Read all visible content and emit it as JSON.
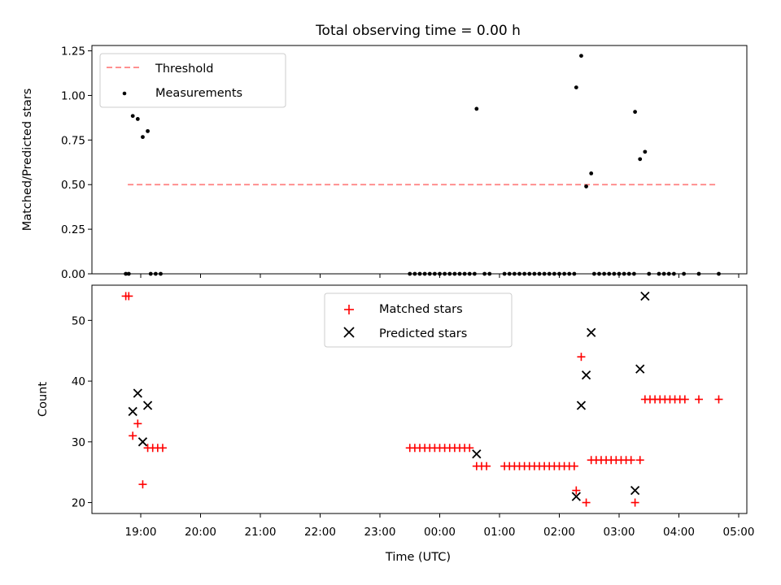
{
  "chart_data": {
    "title": "Total observing time = 0.00 h",
    "xlabel": "Time (UTC)",
    "x_tick_labels": [
      "19:00",
      "20:00",
      "21:00",
      "22:00",
      "23:00",
      "00:00",
      "01:00",
      "02:00",
      "03:00",
      "04:00",
      "05:00"
    ],
    "panels": [
      {
        "type": "scatter",
        "ylabel": "Matched/Predicted stars",
        "ylim": [
          0,
          1.28
        ],
        "yticks": [
          "0.00",
          "0.25",
          "0.50",
          "0.75",
          "1.00",
          "1.25"
        ],
        "grid": false,
        "legend": {
          "placement": "top-left",
          "entries": [
            {
              "label": "Threshold",
              "style": "dashed-line",
              "color": "#ff8080"
            },
            {
              "label": "Measurements",
              "style": "dot",
              "color": "#000000"
            }
          ]
        },
        "series": [
          {
            "name": "Threshold",
            "kind": "line",
            "color": "#ff8080",
            "points": [
              [
                "18:47",
                0.5
              ],
              [
                "04:37",
                0.5
              ]
            ]
          },
          {
            "name": "Measurements",
            "kind": "dot",
            "color": "#000000",
            "points": [
              [
                "18:45",
                0
              ],
              [
                "18:48",
                0
              ],
              [
                "18:52",
                0.885
              ],
              [
                "18:57",
                0.868
              ],
              [
                "19:02",
                0.767
              ],
              [
                "19:07",
                0.8
              ],
              [
                "19:10",
                0
              ],
              [
                "19:15",
                0
              ],
              [
                "19:20",
                0
              ],
              [
                "23:30",
                0
              ],
              [
                "23:35",
                0
              ],
              [
                "23:40",
                0
              ],
              [
                "23:45",
                0
              ],
              [
                "23:50",
                0
              ],
              [
                "23:55",
                0
              ],
              [
                "00:00",
                0
              ],
              [
                "00:05",
                0
              ],
              [
                "00:10",
                0
              ],
              [
                "00:15",
                0
              ],
              [
                "00:20",
                0
              ],
              [
                "00:25",
                0
              ],
              [
                "00:30",
                0
              ],
              [
                "00:35",
                0
              ],
              [
                "00:37",
                0.925
              ],
              [
                "00:45",
                0
              ],
              [
                "00:50",
                0
              ],
              [
                "01:05",
                0
              ],
              [
                "01:10",
                0
              ],
              [
                "01:15",
                0
              ],
              [
                "01:20",
                0
              ],
              [
                "01:25",
                0
              ],
              [
                "01:30",
                0
              ],
              [
                "01:35",
                0
              ],
              [
                "01:40",
                0
              ],
              [
                "01:45",
                0
              ],
              [
                "01:50",
                0
              ],
              [
                "01:55",
                0
              ],
              [
                "02:00",
                0
              ],
              [
                "02:05",
                0
              ],
              [
                "02:10",
                0
              ],
              [
                "02:15",
                0
              ],
              [
                "02:17",
                1.045
              ],
              [
                "02:22",
                1.222
              ],
              [
                "02:27",
                0.49
              ],
              [
                "02:32",
                0.563
              ],
              [
                "02:35",
                0
              ],
              [
                "02:40",
                0
              ],
              [
                "02:45",
                0
              ],
              [
                "02:50",
                0
              ],
              [
                "02:55",
                0
              ],
              [
                "03:00",
                0
              ],
              [
                "03:05",
                0
              ],
              [
                "03:10",
                0
              ],
              [
                "03:15",
                0
              ],
              [
                "03:16",
                0.908
              ],
              [
                "03:21",
                0.643
              ],
              [
                "03:26",
                0.684
              ],
              [
                "03:30",
                0
              ],
              [
                "03:40",
                0
              ],
              [
                "03:45",
                0
              ],
              [
                "03:50",
                0
              ],
              [
                "03:55",
                0
              ],
              [
                "04:05",
                0
              ],
              [
                "04:20",
                0
              ],
              [
                "04:40",
                0
              ]
            ]
          }
        ]
      },
      {
        "type": "scatter",
        "ylabel": "Count",
        "ylim": [
          18.2,
          55.8
        ],
        "yticks": [
          "20",
          "30",
          "40",
          "50"
        ],
        "grid": false,
        "legend": {
          "placement": "top-center",
          "entries": [
            {
              "label": "Matched stars",
              "style": "plus",
              "color": "#ff0000"
            },
            {
              "label": "Predicted stars",
              "style": "x",
              "color": "#000000"
            }
          ]
        },
        "series": [
          {
            "name": "Matched stars",
            "kind": "plus",
            "color": "#ff0000",
            "points": [
              [
                "18:45",
                54
              ],
              [
                "18:48",
                54
              ],
              [
                "18:52",
                31
              ],
              [
                "18:57",
                33
              ],
              [
                "19:02",
                23
              ],
              [
                "19:07",
                29
              ],
              [
                "19:12",
                29
              ],
              [
                "19:17",
                29
              ],
              [
                "19:22",
                29
              ],
              [
                "23:30",
                29
              ],
              [
                "23:35",
                29
              ],
              [
                "23:40",
                29
              ],
              [
                "23:45",
                29
              ],
              [
                "23:50",
                29
              ],
              [
                "23:55",
                29
              ],
              [
                "00:00",
                29
              ],
              [
                "00:05",
                29
              ],
              [
                "00:10",
                29
              ],
              [
                "00:15",
                29
              ],
              [
                "00:20",
                29
              ],
              [
                "00:25",
                29
              ],
              [
                "00:30",
                29
              ],
              [
                "00:37",
                26
              ],
              [
                "00:42",
                26
              ],
              [
                "00:47",
                26
              ],
              [
                "01:05",
                26
              ],
              [
                "01:10",
                26
              ],
              [
                "01:15",
                26
              ],
              [
                "01:20",
                26
              ],
              [
                "01:25",
                26
              ],
              [
                "01:30",
                26
              ],
              [
                "01:35",
                26
              ],
              [
                "01:40",
                26
              ],
              [
                "01:45",
                26
              ],
              [
                "01:50",
                26
              ],
              [
                "01:55",
                26
              ],
              [
                "02:00",
                26
              ],
              [
                "02:05",
                26
              ],
              [
                "02:10",
                26
              ],
              [
                "02:15",
                26
              ],
              [
                "02:17",
                22
              ],
              [
                "02:22",
                44
              ],
              [
                "02:27",
                20
              ],
              [
                "02:32",
                27
              ],
              [
                "02:37",
                27
              ],
              [
                "02:42",
                27
              ],
              [
                "02:47",
                27
              ],
              [
                "02:52",
                27
              ],
              [
                "02:57",
                27
              ],
              [
                "03:02",
                27
              ],
              [
                "03:07",
                27
              ],
              [
                "03:12",
                27
              ],
              [
                "03:16",
                20
              ],
              [
                "03:21",
                27
              ],
              [
                "03:26",
                37
              ],
              [
                "03:31",
                37
              ],
              [
                "03:36",
                37
              ],
              [
                "03:41",
                37
              ],
              [
                "03:46",
                37
              ],
              [
                "03:51",
                37
              ],
              [
                "03:56",
                37
              ],
              [
                "04:01",
                37
              ],
              [
                "04:06",
                37
              ],
              [
                "04:20",
                37
              ],
              [
                "04:40",
                37
              ]
            ]
          },
          {
            "name": "Predicted stars",
            "kind": "x",
            "color": "#000000",
            "points": [
              [
                "18:52",
                35
              ],
              [
                "18:57",
                38
              ],
              [
                "19:02",
                30
              ],
              [
                "19:07",
                36
              ],
              [
                "00:37",
                28
              ],
              [
                "02:17",
                21
              ],
              [
                "02:22",
                36
              ],
              [
                "02:27",
                41
              ],
              [
                "02:32",
                48
              ],
              [
                "03:16",
                22
              ],
              [
                "03:21",
                42
              ],
              [
                "03:26",
                54
              ]
            ]
          }
        ]
      }
    ]
  }
}
